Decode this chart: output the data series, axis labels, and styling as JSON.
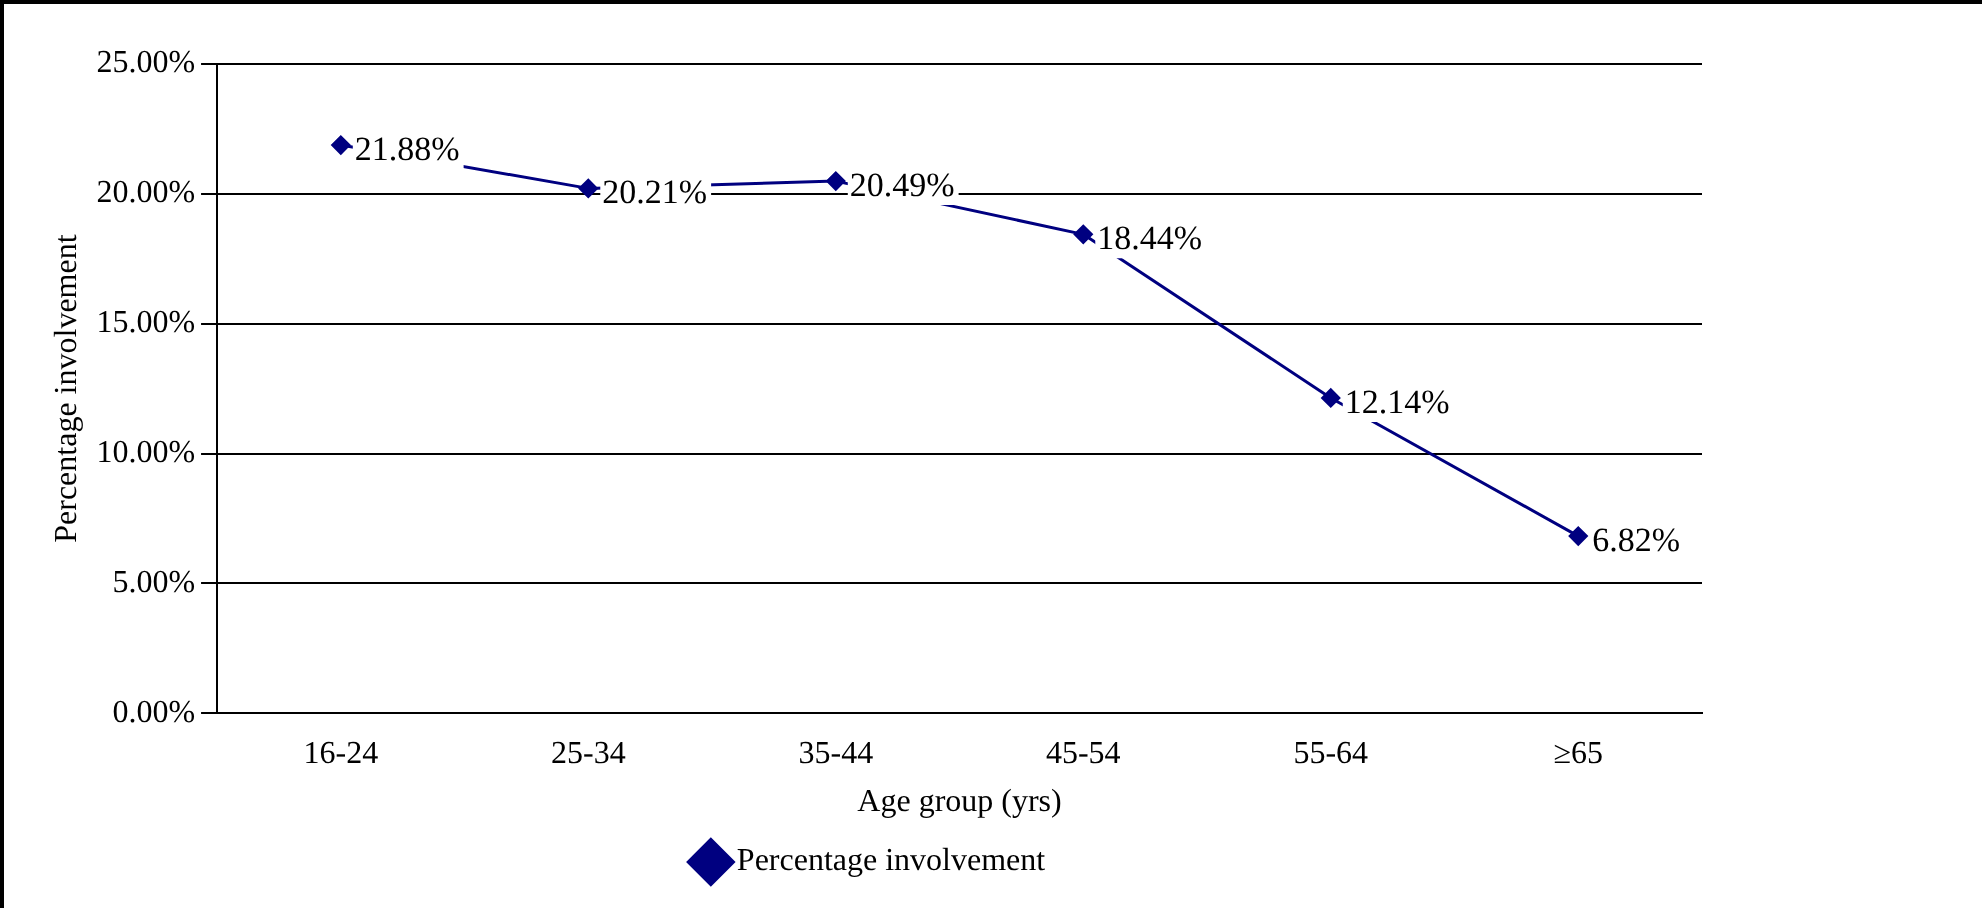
{
  "chart_data": {
    "type": "line",
    "xlabel": "Age group (yrs)",
    "ylabel": "Percentage involvement",
    "categories": [
      "16-24",
      "25-34",
      "35-44",
      "45-54",
      "55-64",
      "≥65"
    ],
    "series": [
      {
        "name": "Percentage involvement",
        "color": "#000080",
        "values": [
          21.88,
          20.21,
          20.49,
          18.44,
          12.14,
          6.82
        ],
        "value_labels": [
          "21.88%",
          "20.21%",
          "20.49%",
          "18.44%",
          "12.14%",
          "6.82%"
        ]
      }
    ],
    "ylim": [
      0,
      25
    ],
    "yticks": [
      {
        "value": 0,
        "label": "0.00%"
      },
      {
        "value": 5,
        "label": "5.00%"
      },
      {
        "value": 10,
        "label": "10.00%"
      },
      {
        "value": 15,
        "label": "15.00%"
      },
      {
        "value": 20,
        "label": "20.00%"
      },
      {
        "value": 25,
        "label": "25.00%"
      }
    ],
    "grid": "y",
    "legend": "bottom",
    "marker": "diamond",
    "line_style": "solid"
  }
}
